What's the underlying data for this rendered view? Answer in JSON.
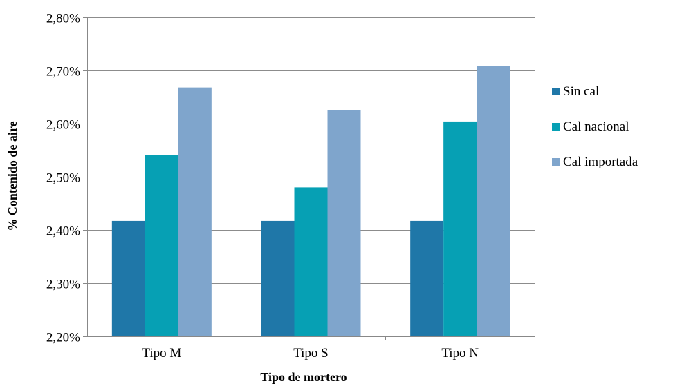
{
  "chart_data": {
    "type": "bar",
    "title": "",
    "xlabel": "Tipo de mortero",
    "ylabel": "% Contenido de aire",
    "categories": [
      "Tipo M",
      "Tipo S",
      "Tipo N"
    ],
    "series": [
      {
        "name": "Sin cal",
        "values": [
          2.417,
          2.417,
          2.417
        ],
        "color": "#1f77a8"
      },
      {
        "name": "Cal nacional",
        "values": [
          2.541,
          2.48,
          2.604
        ],
        "color": "#06a0b4"
      },
      {
        "name": "Cal importada",
        "values": [
          2.668,
          2.625,
          2.708
        ],
        "color": "#7fa5cc"
      }
    ],
    "ylim": [
      2.2,
      2.8
    ],
    "yticks": [
      2.2,
      2.3,
      2.4,
      2.5,
      2.6,
      2.7,
      2.8
    ],
    "ytick_labels": [
      "2,20%",
      "2,30%",
      "2,40%",
      "2,50%",
      "2,60%",
      "2,70%",
      "2,80%"
    ],
    "grid": true,
    "legend_position": "right"
  }
}
